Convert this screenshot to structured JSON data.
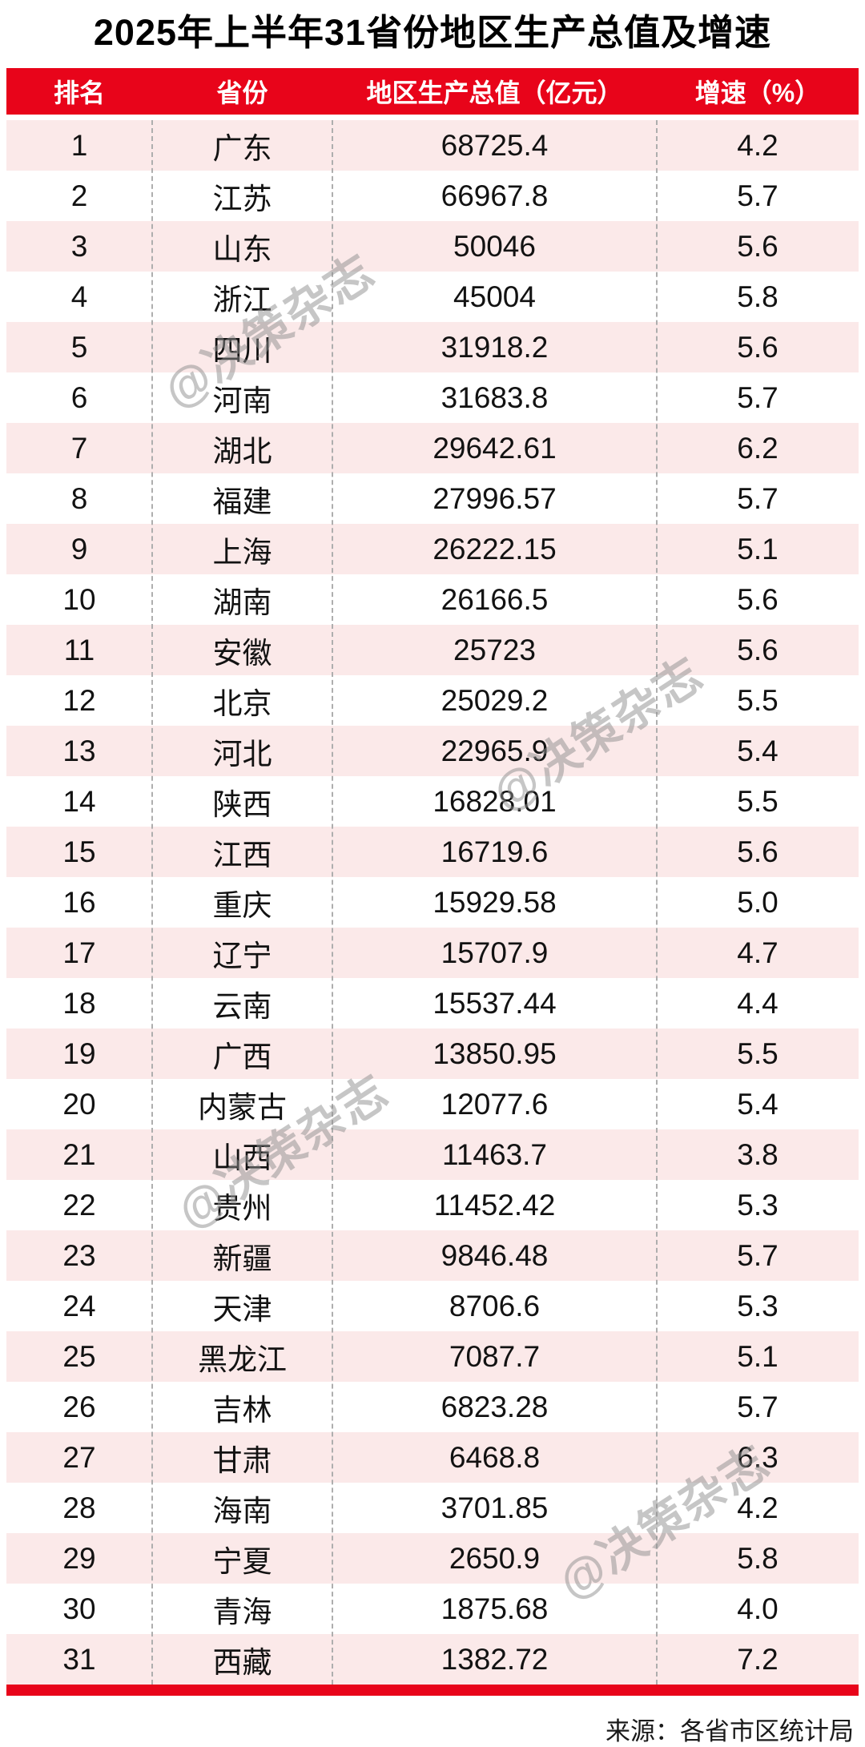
{
  "title": "2025年上半年31省份地区生产总值及增速",
  "watermark_text": "@决策杂志",
  "source": "来源：各省市区统计局",
  "colors": {
    "header_red": "#e8041a",
    "row_pink": "#fbe9e9",
    "watermark_gray": "#8f8f8f"
  },
  "chart_data": {
    "type": "table",
    "title": "2025年上半年31省份地区生产总值及增速",
    "columns": [
      "排名",
      "省份",
      "地区生产总值（亿元）",
      "增速（%）"
    ],
    "rows": [
      [
        "1",
        "广东",
        "68725.4",
        "4.2"
      ],
      [
        "2",
        "江苏",
        "66967.8",
        "5.7"
      ],
      [
        "3",
        "山东",
        "50046",
        "5.6"
      ],
      [
        "4",
        "浙江",
        "45004",
        "5.8"
      ],
      [
        "5",
        "四川",
        "31918.2",
        "5.6"
      ],
      [
        "6",
        "河南",
        "31683.8",
        "5.7"
      ],
      [
        "7",
        "湖北",
        "29642.61",
        "6.2"
      ],
      [
        "8",
        "福建",
        "27996.57",
        "5.7"
      ],
      [
        "9",
        "上海",
        "26222.15",
        "5.1"
      ],
      [
        "10",
        "湖南",
        "26166.5",
        "5.6"
      ],
      [
        "11",
        "安徽",
        "25723",
        "5.6"
      ],
      [
        "12",
        "北京",
        "25029.2",
        "5.5"
      ],
      [
        "13",
        "河北",
        "22965.9",
        "5.4"
      ],
      [
        "14",
        "陕西",
        "16828.01",
        "5.5"
      ],
      [
        "15",
        "江西",
        "16719.6",
        "5.6"
      ],
      [
        "16",
        "重庆",
        "15929.58",
        "5.0"
      ],
      [
        "17",
        "辽宁",
        "15707.9",
        "4.7"
      ],
      [
        "18",
        "云南",
        "15537.44",
        "4.4"
      ],
      [
        "19",
        "广西",
        "13850.95",
        "5.5"
      ],
      [
        "20",
        "内蒙古",
        "12077.6",
        "5.4"
      ],
      [
        "21",
        "山西",
        "11463.7",
        "3.8"
      ],
      [
        "22",
        "贵州",
        "11452.42",
        "5.3"
      ],
      [
        "23",
        "新疆",
        "9846.48",
        "5.7"
      ],
      [
        "24",
        "天津",
        "8706.6",
        "5.3"
      ],
      [
        "25",
        "黑龙江",
        "7087.7",
        "5.1"
      ],
      [
        "26",
        "吉林",
        "6823.28",
        "5.7"
      ],
      [
        "27",
        "甘肃",
        "6468.8",
        "6.3"
      ],
      [
        "28",
        "海南",
        "3701.85",
        "4.2"
      ],
      [
        "29",
        "宁夏",
        "2650.9",
        "5.8"
      ],
      [
        "30",
        "青海",
        "1875.68",
        "4.0"
      ],
      [
        "31",
        "西藏",
        "1382.72",
        "7.2"
      ]
    ],
    "source": "来源：各省市区统计局",
    "layout": {
      "row_stripe_odd": "pink",
      "row_stripe_even": "white",
      "column_dividers": "dashed"
    }
  }
}
